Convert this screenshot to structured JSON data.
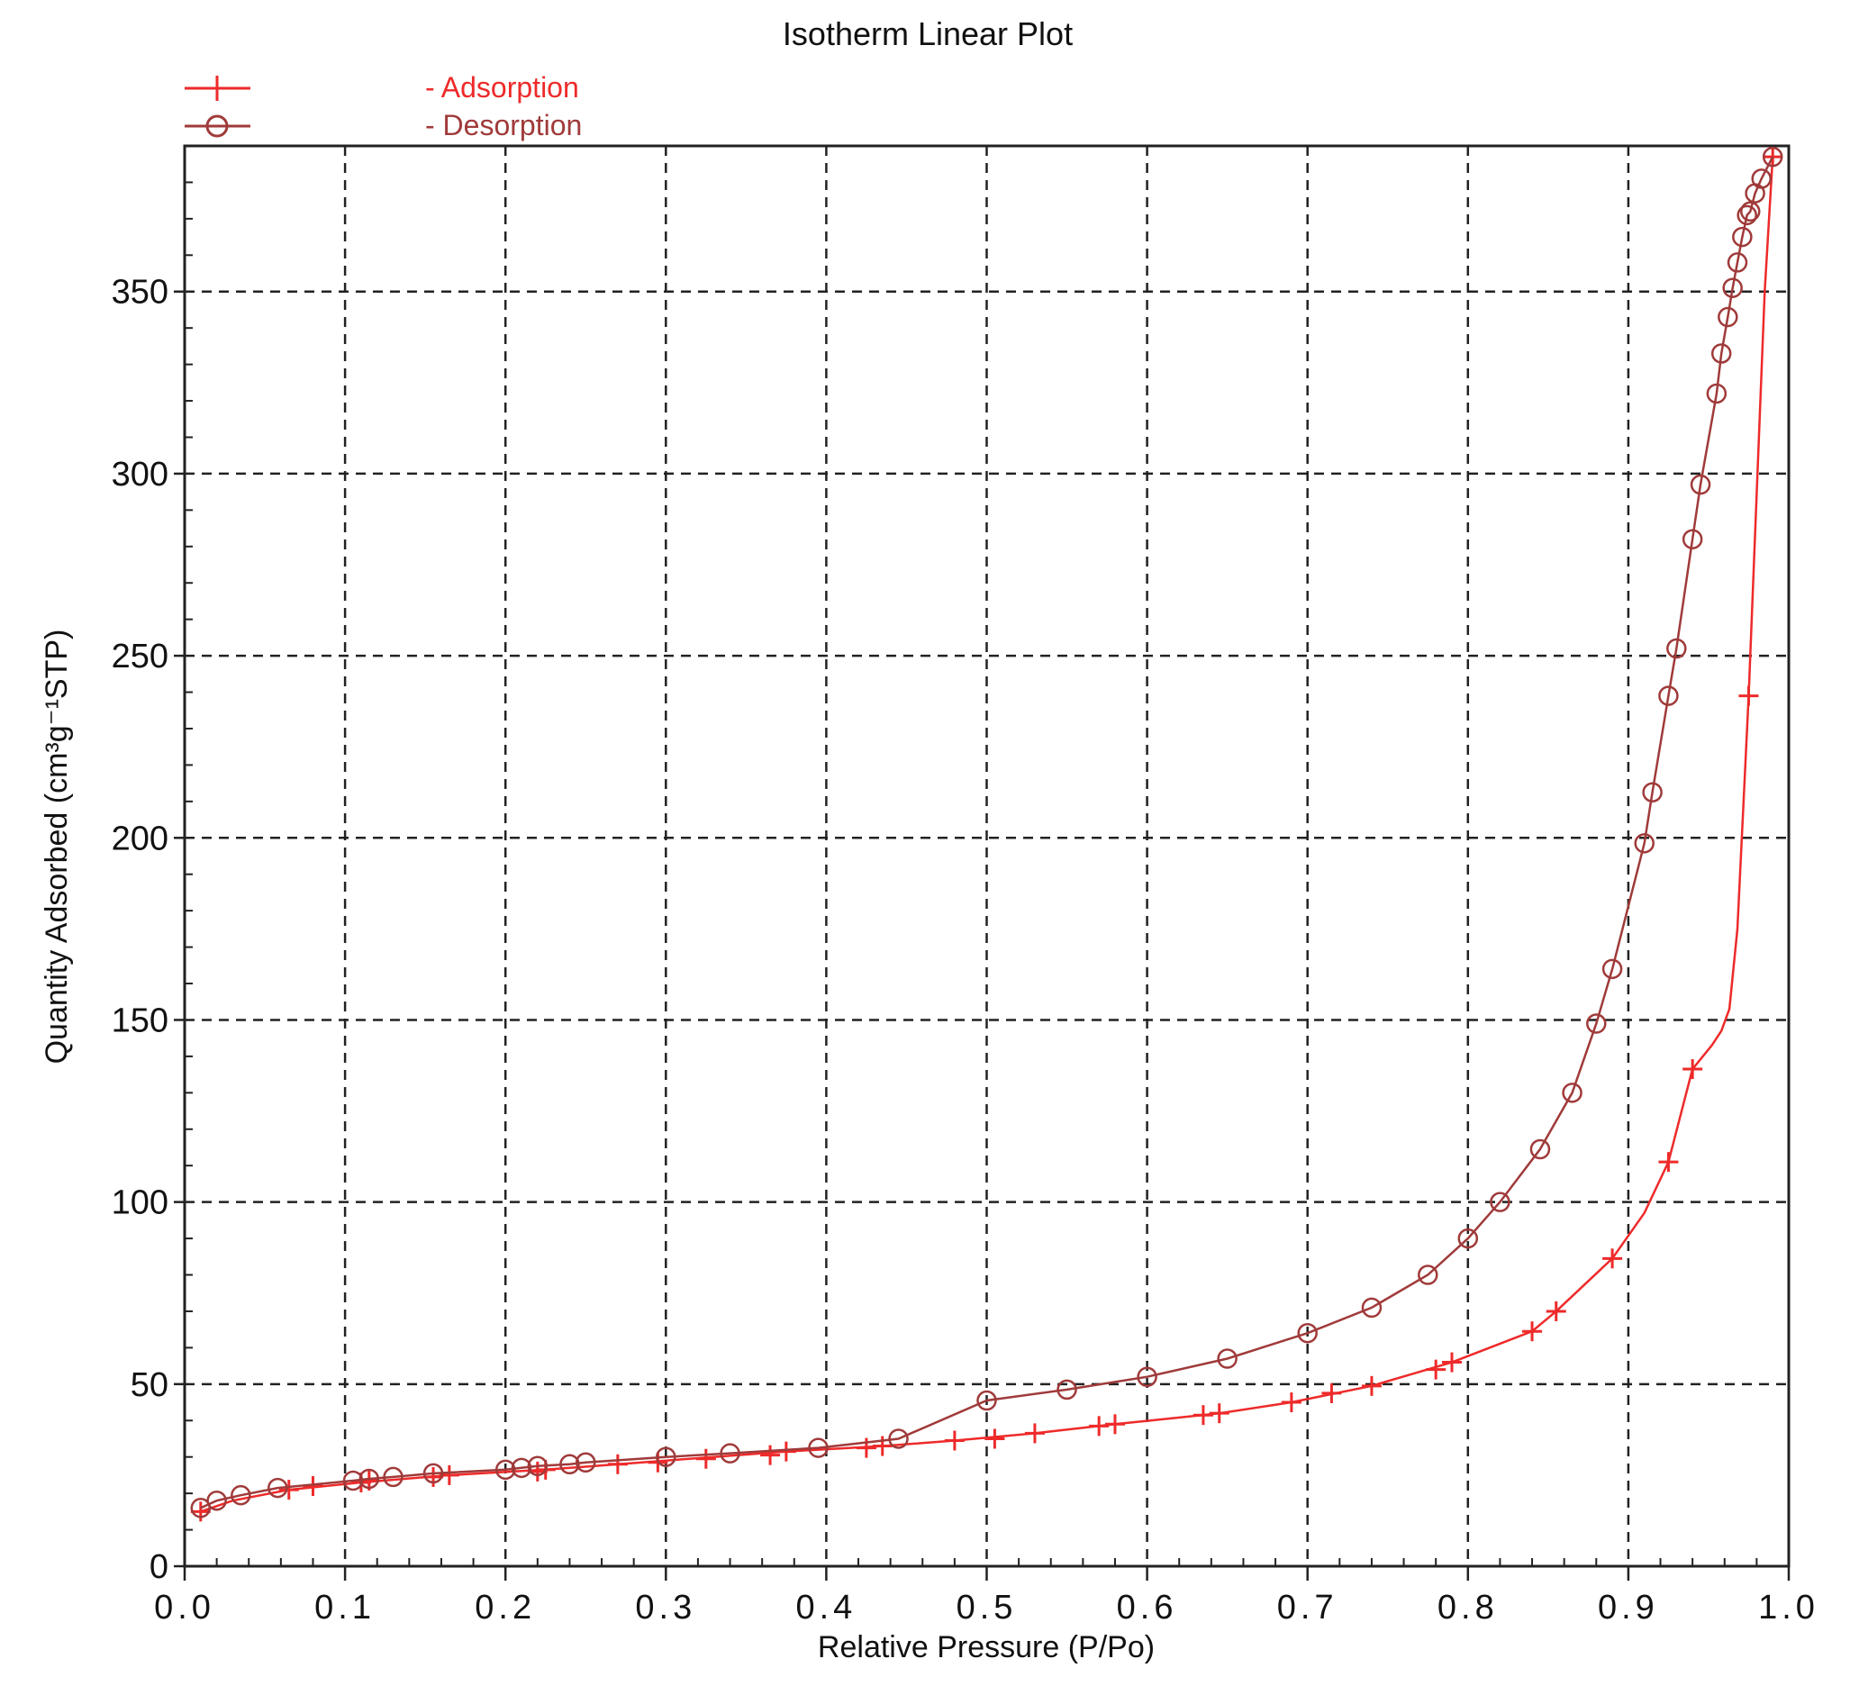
{
  "chart_data": {
    "type": "line",
    "title": "Isotherm Linear Plot",
    "xlabel": "Relative Pressure (P/Po)",
    "ylabel": "Quantity Adsorbed (cm³g⁻¹STP)",
    "xlim": [
      0.0,
      1.0
    ],
    "ylim": [
      0,
      390
    ],
    "xticks": [
      0.0,
      0.1,
      0.2,
      0.3,
      0.4,
      0.5,
      0.6,
      0.7,
      0.8,
      0.9,
      1.0
    ],
    "xtick_labels": [
      "0.0",
      "0.1",
      "0.2",
      "0.3",
      "0.4",
      "0.5",
      "0.6",
      "0.7",
      "0.8",
      "0.9",
      "1.0"
    ],
    "yticks": [
      0,
      50,
      100,
      150,
      200,
      250,
      300,
      350
    ],
    "ytick_labels": [
      "0",
      "50",
      "100",
      "150",
      "200",
      "250",
      "300",
      "350"
    ],
    "grid": true,
    "legend_position": "top-left",
    "series": [
      {
        "name": "- Adsorption",
        "color": "#ee2a2a",
        "marker": "plus",
        "x": [
          0.01,
          0.065,
          0.08,
          0.11,
          0.115,
          0.155,
          0.165,
          0.22,
          0.225,
          0.27,
          0.295,
          0.325,
          0.365,
          0.375,
          0.425,
          0.435,
          0.48,
          0.505,
          0.53,
          0.57,
          0.58,
          0.635,
          0.645,
          0.69,
          0.715,
          0.74,
          0.78,
          0.79,
          0.84,
          0.855,
          0.89,
          0.925,
          0.94,
          0.975,
          0.99
        ],
        "y": [
          15,
          21,
          22,
          23,
          23.5,
          24.5,
          25,
          26,
          26.5,
          28,
          28.5,
          29.5,
          30.5,
          31.5,
          32.5,
          33,
          34.5,
          35,
          36.5,
          38.5,
          39,
          41.5,
          42,
          45,
          47.5,
          49.5,
          54,
          56,
          64.5,
          70,
          84.5,
          111,
          136.5,
          239,
          387
        ],
        "curve": {
          "x": [
            0.01,
            0.03,
            0.065,
            0.11,
            0.165,
            0.225,
            0.3,
            0.375,
            0.435,
            0.48,
            0.53,
            0.58,
            0.645,
            0.69,
            0.74,
            0.79,
            0.84,
            0.855,
            0.89,
            0.91,
            0.925,
            0.94,
            0.952,
            0.958,
            0.963,
            0.968,
            0.975,
            0.985,
            0.99
          ],
          "y": [
            15,
            18,
            21,
            23,
            25,
            26.5,
            29,
            31.5,
            33,
            34.5,
            36.5,
            39,
            42,
            45,
            49.5,
            56,
            64.5,
            70,
            84.5,
            97,
            111,
            136.5,
            143,
            147,
            153,
            175,
            239,
            350,
            387
          ]
        }
      },
      {
        "name": "- Desorption",
        "color": "#a03a3a",
        "marker": "circle",
        "x": [
          0.01,
          0.02,
          0.035,
          0.058,
          0.105,
          0.115,
          0.13,
          0.155,
          0.2,
          0.21,
          0.22,
          0.24,
          0.25,
          0.3,
          0.34,
          0.395,
          0.445,
          0.5,
          0.55,
          0.6,
          0.65,
          0.7,
          0.74,
          0.775,
          0.8,
          0.82,
          0.845,
          0.865,
          0.88,
          0.89,
          0.91,
          0.915,
          0.925,
          0.93,
          0.94,
          0.945,
          0.955,
          0.958,
          0.962,
          0.965,
          0.968,
          0.971,
          0.974,
          0.976,
          0.979,
          0.983,
          0.99
        ],
        "y": [
          16,
          18,
          19.5,
          21.5,
          23.5,
          24,
          24.5,
          25.5,
          26.5,
          27,
          27.5,
          28,
          28.5,
          30,
          31,
          32.5,
          35,
          45.5,
          48.5,
          52,
          57,
          64,
          71,
          80,
          90,
          100,
          114.5,
          130,
          149,
          164,
          198.5,
          212.5,
          239,
          252,
          282,
          297,
          322,
          333,
          343,
          351,
          358,
          365,
          371,
          372,
          377,
          381,
          387
        ]
      }
    ]
  }
}
